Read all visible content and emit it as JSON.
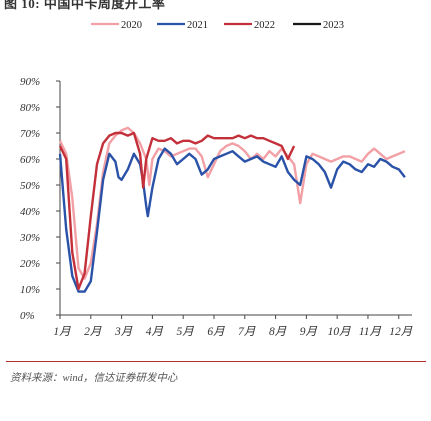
{
  "header": {
    "text": "图 10:  中国中卡周度开工率"
  },
  "source": {
    "text": "资料来源：wind，信达证券研发中心"
  },
  "colors": {
    "2020": "#f2a0a5",
    "2021": "#2a52a8",
    "2022": "#c3303a",
    "2023": "#181818"
  },
  "chart_data": {
    "type": "line",
    "ylim": [
      0,
      90
    ],
    "xlim": [
      1,
      12.3
    ],
    "yticks": [
      "0%",
      "10%",
      "20%",
      "30%",
      "40%",
      "50%",
      "60%",
      "70%",
      "80%",
      "90%"
    ],
    "ytick_values": [
      0,
      10,
      20,
      30,
      40,
      50,
      60,
      70,
      80,
      90
    ],
    "xticks": [
      "1月",
      "2月",
      "3月",
      "4月",
      "5月",
      "6月",
      "7月",
      "8月",
      "9月",
      "10月",
      "11月",
      "12月"
    ],
    "legend_position": "top",
    "grid": false,
    "series": [
      {
        "name": "2020",
        "color": "#f2a0a5",
        "points": [
          [
            1.0,
            67
          ],
          [
            1.2,
            62
          ],
          [
            1.4,
            45
          ],
          [
            1.6,
            18
          ],
          [
            1.8,
            14
          ],
          [
            2.0,
            20
          ],
          [
            2.2,
            35
          ],
          [
            2.4,
            55
          ],
          [
            2.6,
            66
          ],
          [
            2.8,
            69
          ],
          [
            3.0,
            71
          ],
          [
            3.2,
            72
          ],
          [
            3.4,
            70
          ],
          [
            3.6,
            66
          ],
          [
            3.8,
            60
          ],
          [
            3.9,
            50
          ],
          [
            4.0,
            60
          ],
          [
            4.2,
            64
          ],
          [
            4.4,
            63
          ],
          [
            4.6,
            61
          ],
          [
            4.8,
            62
          ],
          [
            5.0,
            63
          ],
          [
            5.2,
            64
          ],
          [
            5.4,
            64
          ],
          [
            5.6,
            61
          ],
          [
            5.8,
            53
          ],
          [
            6.0,
            58
          ],
          [
            6.2,
            63
          ],
          [
            6.4,
            65
          ],
          [
            6.6,
            66
          ],
          [
            6.8,
            65
          ],
          [
            7.0,
            63
          ],
          [
            7.2,
            60
          ],
          [
            7.4,
            62
          ],
          [
            7.6,
            60
          ],
          [
            7.8,
            63
          ],
          [
            8.0,
            61
          ],
          [
            8.2,
            64
          ],
          [
            8.4,
            61
          ],
          [
            8.6,
            58
          ],
          [
            8.8,
            43
          ],
          [
            9.0,
            58
          ],
          [
            9.2,
            62
          ],
          [
            9.4,
            61
          ],
          [
            9.6,
            60
          ],
          [
            9.8,
            59
          ],
          [
            10.0,
            60
          ],
          [
            10.2,
            61
          ],
          [
            10.4,
            61
          ],
          [
            10.6,
            60
          ],
          [
            10.8,
            59
          ],
          [
            11.0,
            62
          ],
          [
            11.2,
            64
          ],
          [
            11.4,
            62
          ],
          [
            11.6,
            60
          ],
          [
            11.8,
            61
          ],
          [
            12.0,
            62
          ],
          [
            12.2,
            63
          ]
        ]
      },
      {
        "name": "2021",
        "color": "#2a52a8",
        "points": [
          [
            1.0,
            62
          ],
          [
            1.2,
            33
          ],
          [
            1.4,
            15
          ],
          [
            1.6,
            9
          ],
          [
            1.8,
            9
          ],
          [
            2.0,
            13
          ],
          [
            2.2,
            32
          ],
          [
            2.4,
            52
          ],
          [
            2.6,
            62
          ],
          [
            2.8,
            59
          ],
          [
            2.9,
            53
          ],
          [
            3.0,
            52
          ],
          [
            3.2,
            56
          ],
          [
            3.4,
            62
          ],
          [
            3.6,
            58
          ],
          [
            3.7,
            51
          ],
          [
            3.8,
            42
          ],
          [
            3.85,
            38
          ],
          [
            4.0,
            49
          ],
          [
            4.2,
            60
          ],
          [
            4.4,
            64
          ],
          [
            4.6,
            62
          ],
          [
            4.8,
            58
          ],
          [
            5.0,
            60
          ],
          [
            5.2,
            62
          ],
          [
            5.4,
            60
          ],
          [
            5.6,
            54
          ],
          [
            5.8,
            56
          ],
          [
            6.0,
            60
          ],
          [
            6.2,
            61
          ],
          [
            6.4,
            62
          ],
          [
            6.6,
            63
          ],
          [
            6.8,
            61
          ],
          [
            7.0,
            59
          ],
          [
            7.2,
            60
          ],
          [
            7.4,
            61
          ],
          [
            7.6,
            59
          ],
          [
            7.8,
            58
          ],
          [
            8.0,
            57
          ],
          [
            8.2,
            61
          ],
          [
            8.4,
            55
          ],
          [
            8.6,
            52
          ],
          [
            8.8,
            50
          ],
          [
            9.0,
            61
          ],
          [
            9.2,
            60
          ],
          [
            9.4,
            58
          ],
          [
            9.6,
            55
          ],
          [
            9.8,
            49
          ],
          [
            10.0,
            56
          ],
          [
            10.2,
            59
          ],
          [
            10.4,
            58
          ],
          [
            10.6,
            56
          ],
          [
            10.8,
            55
          ],
          [
            11.0,
            58
          ],
          [
            11.2,
            57
          ],
          [
            11.4,
            60
          ],
          [
            11.6,
            59
          ],
          [
            11.8,
            57
          ],
          [
            12.0,
            56
          ],
          [
            12.2,
            53
          ]
        ]
      },
      {
        "name": "2022",
        "color": "#c3303a",
        "points": [
          [
            1.0,
            65
          ],
          [
            1.2,
            60
          ],
          [
            1.4,
            24
          ],
          [
            1.6,
            10
          ],
          [
            1.8,
            16
          ],
          [
            2.0,
            38
          ],
          [
            2.2,
            58
          ],
          [
            2.4,
            66
          ],
          [
            2.6,
            69
          ],
          [
            2.8,
            70
          ],
          [
            3.0,
            70
          ],
          [
            3.2,
            69
          ],
          [
            3.4,
            70
          ],
          [
            3.6,
            62
          ],
          [
            3.7,
            49
          ],
          [
            3.8,
            60
          ],
          [
            4.0,
            68
          ],
          [
            4.2,
            67
          ],
          [
            4.4,
            67
          ],
          [
            4.6,
            68
          ],
          [
            4.8,
            66
          ],
          [
            5.0,
            67
          ],
          [
            5.2,
            67
          ],
          [
            5.4,
            66
          ],
          [
            5.6,
            67
          ],
          [
            5.8,
            69
          ],
          [
            6.0,
            68
          ],
          [
            6.2,
            68
          ],
          [
            6.4,
            68
          ],
          [
            6.6,
            68
          ],
          [
            6.8,
            69
          ],
          [
            7.0,
            68
          ],
          [
            7.2,
            69
          ],
          [
            7.4,
            68
          ],
          [
            7.6,
            68
          ],
          [
            7.8,
            67
          ],
          [
            8.0,
            66
          ],
          [
            8.2,
            65
          ],
          [
            8.4,
            60
          ],
          [
            8.6,
            65
          ]
        ]
      },
      {
        "name": "2023",
        "color": "#181818",
        "points": []
      }
    ]
  }
}
